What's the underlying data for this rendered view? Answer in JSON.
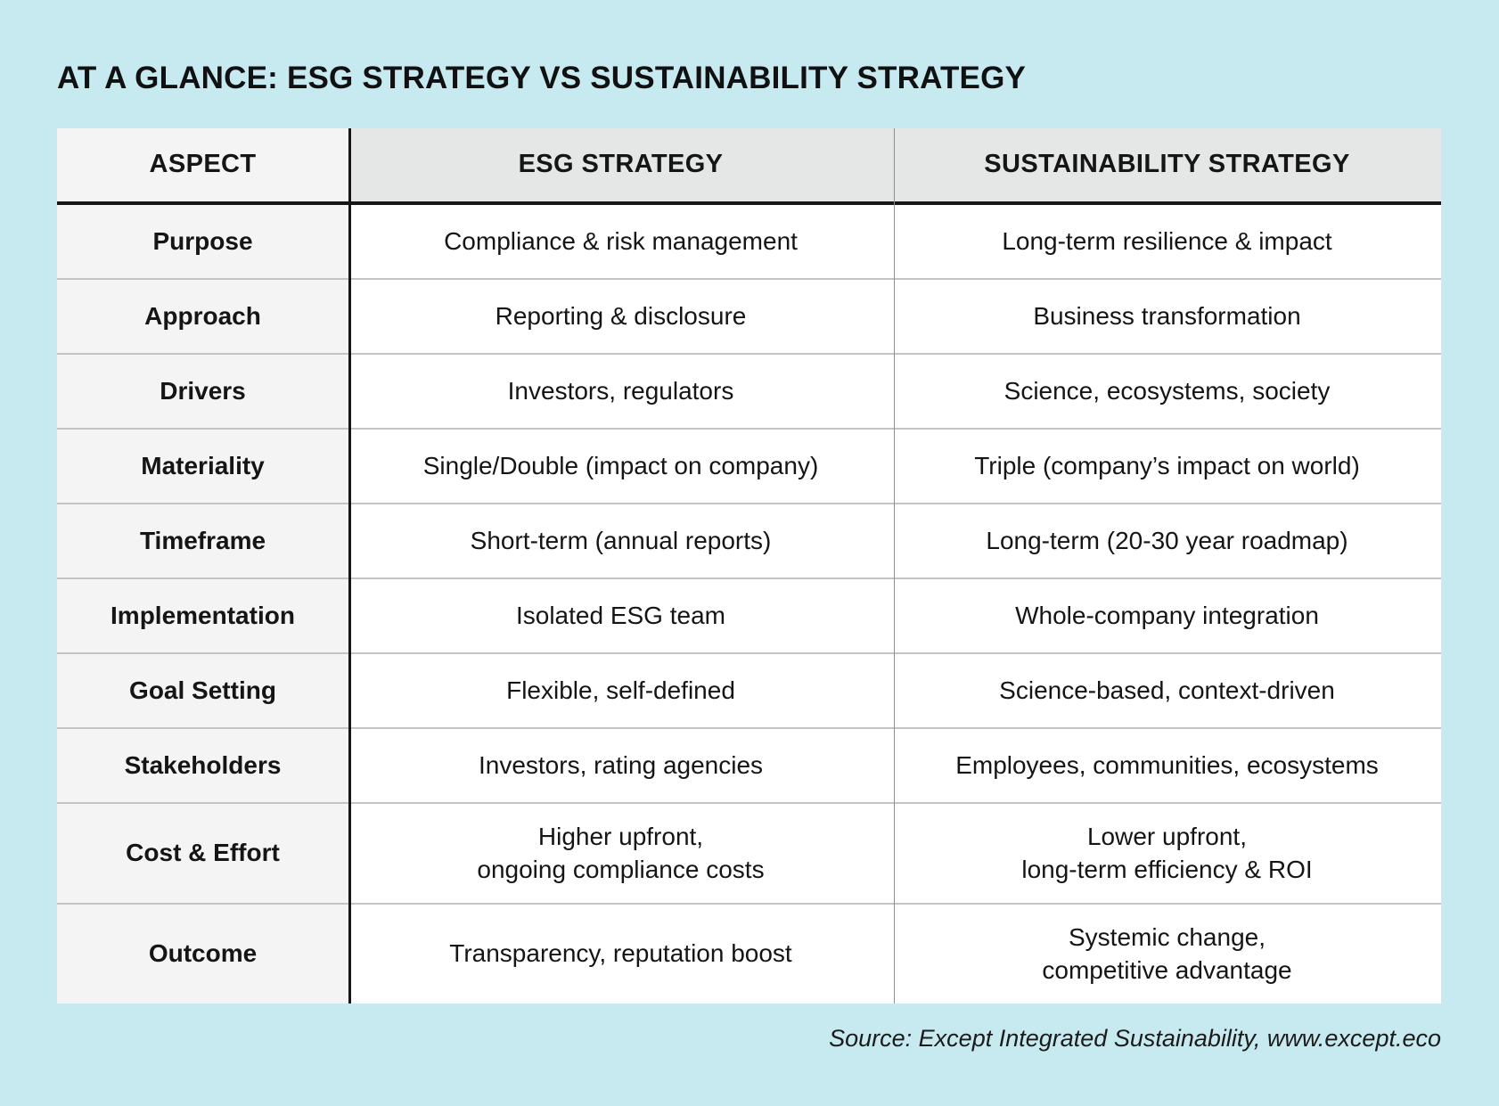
{
  "chart_data": {
    "type": "table",
    "title": "AT A GLANCE: ESG STRATEGY VS SUSTAINABILITY STRATEGY",
    "columns": [
      "ASPECT",
      "ESG STRATEGY",
      "SUSTAINABILITY STRATEGY"
    ],
    "rows": [
      {
        "aspect": "Purpose",
        "esg": "Compliance & risk management",
        "sustainability": "Long-term resilience & impact"
      },
      {
        "aspect": "Approach",
        "esg": "Reporting & disclosure",
        "sustainability": "Business transformation"
      },
      {
        "aspect": "Drivers",
        "esg": "Investors, regulators",
        "sustainability": "Science, ecosystems, society"
      },
      {
        "aspect": "Materiality",
        "esg": "Single/Double (impact on company)",
        "sustainability": "Triple (company’s impact on world)"
      },
      {
        "aspect": "Timeframe",
        "esg": "Short-term (annual reports)",
        "sustainability": "Long-term (20-30 year roadmap)"
      },
      {
        "aspect": "Implementation",
        "esg": "Isolated ESG team",
        "sustainability": "Whole-company integration"
      },
      {
        "aspect": "Goal Setting",
        "esg": "Flexible, self-defined",
        "sustainability": "Science-based, context-driven"
      },
      {
        "aspect": "Stakeholders",
        "esg": "Investors, rating agencies",
        "sustainability": "Employees, communities, ecosystems"
      },
      {
        "aspect": "Cost & Effort",
        "esg": "Higher upfront,\nongoing compliance costs",
        "sustainability": "Lower upfront,\nlong-term efficiency & ROI"
      },
      {
        "aspect": "Outcome",
        "esg": "Transparency, reputation boost",
        "sustainability": "Systemic change,\ncompetitive advantage"
      }
    ],
    "source": "Source: Except Integrated Sustainability, www.except.eco",
    "layout": {
      "legend": "none",
      "grid": "table-borders"
    }
  },
  "colors": {
    "background": "#c7e9f0",
    "header_bg": "#e5e6e6",
    "aspect_col_bg": "#f4f4f4",
    "cell_bg": "#ffffff",
    "heavy_border": "#161616",
    "light_border": "#c4c4c4",
    "column_divider": "#8f8f8f",
    "text": "#151515"
  }
}
